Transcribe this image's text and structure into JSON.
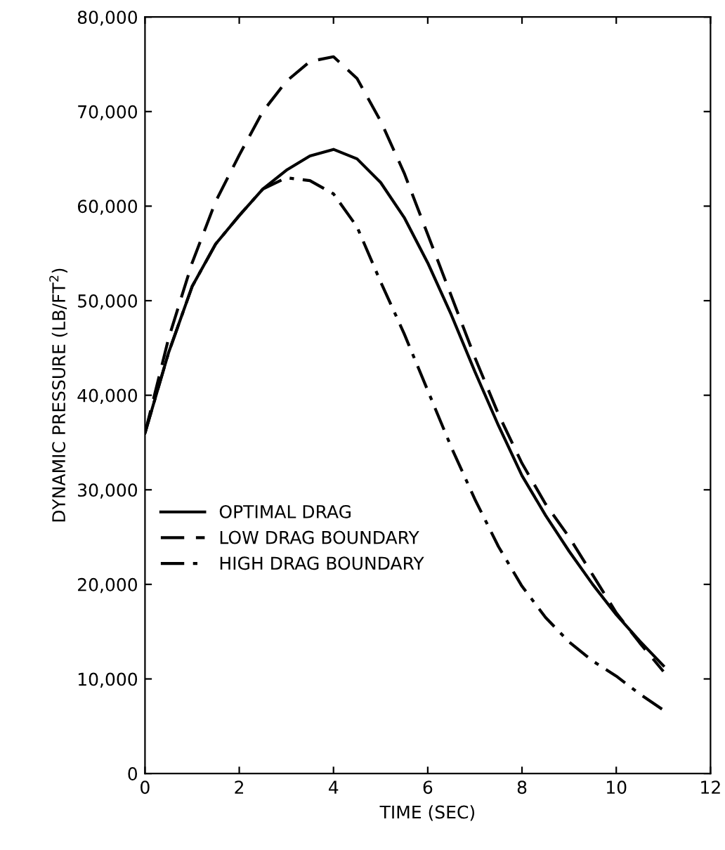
{
  "chart_data": {
    "type": "line",
    "xlabel": "TIME (SEC)",
    "ylabel": "DYNAMIC PRESSURE (LB/FT$^{2}$)",
    "x": [
      0,
      0.5,
      1,
      1.5,
      2,
      2.5,
      3,
      3.5,
      4,
      4.5,
      5,
      5.5,
      6,
      6.5,
      7,
      7.5,
      8,
      8.5,
      9,
      9.5,
      10,
      10.5,
      11
    ],
    "series": [
      {
        "name": "OPTIMAL DRAG",
        "color": "#000000",
        "line_style": "solid",
        "values": [
          36000,
          44500,
          51500,
          56000,
          59000,
          61800,
          63800,
          65300,
          66000,
          65000,
          62500,
          58800,
          54000,
          48500,
          42500,
          36800,
          31500,
          27300,
          23500,
          20000,
          16800,
          14000,
          11400
        ]
      },
      {
        "name": "LOW DRAG BOUNDARY",
        "color": "#000000",
        "line_style": "dashed",
        "values": [
          36000,
          46000,
          54000,
          60500,
          65400,
          70000,
          73200,
          75300,
          75800,
          73500,
          69000,
          63500,
          57000,
          50500,
          44000,
          38000,
          32800,
          28500,
          25000,
          21000,
          17000,
          13800,
          10800
        ]
      },
      {
        "name": "HIGH DRAG BOUNDARY",
        "color": "#000000",
        "line_style": "dashdot",
        "values": [
          36000,
          44500,
          51500,
          56000,
          59000,
          61800,
          63000,
          62700,
          61300,
          57800,
          52000,
          46500,
          40500,
          34500,
          29000,
          24000,
          19800,
          16500,
          13900,
          11900,
          10300,
          8400,
          6700
        ]
      }
    ],
    "xlim": [
      0,
      12
    ],
    "xticks": [
      0,
      2,
      4,
      6,
      8,
      10,
      12
    ],
    "ylim": [
      0,
      80000
    ],
    "yticks": [
      {
        "value": 0,
        "label": "0"
      },
      {
        "value": 10000,
        "label": "10,000"
      },
      {
        "value": 20000,
        "label": "20,000"
      },
      {
        "value": 30000,
        "label": "30,000"
      },
      {
        "value": 40000,
        "label": "40,000"
      },
      {
        "value": 50000,
        "label": "50,000"
      },
      {
        "value": 60000,
        "label": "60,000"
      },
      {
        "value": 70000,
        "label": "70,000"
      },
      {
        "value": 80000,
        "label": "80,000"
      }
    ],
    "grid": false,
    "legend": "left"
  }
}
